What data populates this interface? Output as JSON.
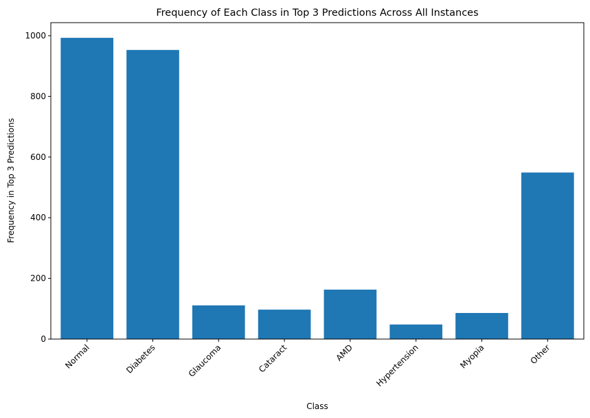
{
  "chart_data": {
    "type": "bar",
    "title": "Frequency of Each Class in Top 3 Predictions Across All Instances",
    "xlabel": "Class",
    "ylabel": "Frequency in Top 3 Predictions",
    "categories": [
      "Normal",
      "Diabetes",
      "Glaucoma",
      "Cataract",
      "AMD",
      "Hypertension",
      "Myopia",
      "Other"
    ],
    "values": [
      993,
      953,
      111,
      97,
      163,
      48,
      86,
      549
    ],
    "ylim": [
      0,
      1043
    ],
    "yticks": [
      0,
      200,
      400,
      600,
      800,
      1000
    ],
    "bar_color": "#1f77b4",
    "grid": false,
    "legend": "none"
  }
}
